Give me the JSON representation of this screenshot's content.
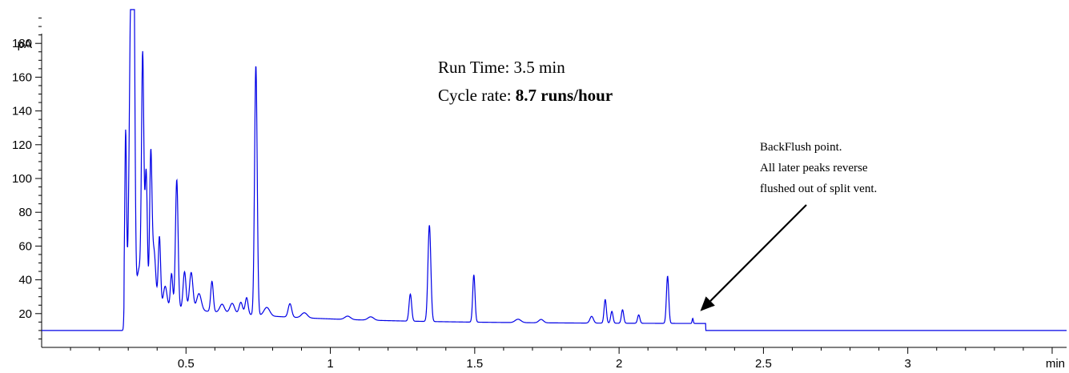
{
  "chart_data": {
    "type": "line",
    "title": "",
    "xlabel": "",
    "ylabel": "",
    "x_unit": "min",
    "y_unit": "pA",
    "xlim": [
      0,
      3.55
    ],
    "ylim": [
      0,
      200
    ],
    "x_ticks": [
      {
        "value": 0.5,
        "label": "0.5"
      },
      {
        "value": 1,
        "label": "1"
      },
      {
        "value": 1.5,
        "label": "1.5"
      },
      {
        "value": 2,
        "label": "2"
      },
      {
        "value": 2.5,
        "label": "2.5"
      },
      {
        "value": 3,
        "label": "3"
      }
    ],
    "x_minor_step": 0.1,
    "y_ticks": [
      {
        "value": 20,
        "label": "20"
      },
      {
        "value": 40,
        "label": "40"
      },
      {
        "value": 60,
        "label": "60"
      },
      {
        "value": 80,
        "label": "80"
      },
      {
        "value": 100,
        "label": "100"
      },
      {
        "value": 120,
        "label": "120"
      },
      {
        "value": 140,
        "label": "140"
      },
      {
        "value": 160,
        "label": "160"
      },
      {
        "value": 180,
        "label": "180"
      }
    ],
    "y_minor_step": 5,
    "baseline": 10,
    "series": [
      {
        "color": "#0000e6",
        "peaks": [
          {
            "rt": 0.291,
            "height": 110,
            "width": 0.003
          },
          {
            "rt": 0.31,
            "height": 200,
            "width": 0.006
          },
          {
            "rt": 0.319,
            "height": 182,
            "width": 0.004
          },
          {
            "rt": 0.338,
            "height": 30,
            "width": 0.008
          },
          {
            "rt": 0.35,
            "height": 152,
            "width": 0.004
          },
          {
            "rt": 0.362,
            "height": 88,
            "width": 0.004
          },
          {
            "rt": 0.378,
            "height": 96,
            "width": 0.004
          },
          {
            "rt": 0.389,
            "height": 42,
            "width": 0.006
          },
          {
            "rt": 0.408,
            "height": 51,
            "width": 0.004
          },
          {
            "rt": 0.428,
            "height": 22,
            "width": 0.006
          },
          {
            "rt": 0.45,
            "height": 30,
            "width": 0.004
          },
          {
            "rt": 0.468,
            "height": 86,
            "width": 0.0045
          },
          {
            "rt": 0.495,
            "height": 32,
            "width": 0.005
          },
          {
            "rt": 0.518,
            "height": 32,
            "width": 0.006
          },
          {
            "rt": 0.545,
            "height": 20,
            "width": 0.008
          },
          {
            "rt": 0.59,
            "height": 28,
            "width": 0.0045
          },
          {
            "rt": 0.625,
            "height": 15,
            "width": 0.008
          },
          {
            "rt": 0.66,
            "height": 16,
            "width": 0.008
          },
          {
            "rt": 0.69,
            "height": 17,
            "width": 0.006
          },
          {
            "rt": 0.71,
            "height": 20,
            "width": 0.005
          },
          {
            "rt": 0.742,
            "height": 158,
            "width": 0.0045
          },
          {
            "rt": 0.78,
            "height": 15,
            "width": 0.01
          },
          {
            "rt": 0.86,
            "height": 18,
            "width": 0.006
          },
          {
            "rt": 0.91,
            "height": 13,
            "width": 0.01
          },
          {
            "rt": 1.06,
            "height": 12,
            "width": 0.01
          },
          {
            "rt": 1.14,
            "height": 12,
            "width": 0.01
          },
          {
            "rt": 1.277,
            "height": 26,
            "width": 0.0045
          },
          {
            "rt": 1.343,
            "height": 67,
            "width": 0.005
          },
          {
            "rt": 1.497,
            "height": 38,
            "width": 0.004
          },
          {
            "rt": 1.65,
            "height": 12,
            "width": 0.01
          },
          {
            "rt": 1.73,
            "height": 12,
            "width": 0.008
          },
          {
            "rt": 1.905,
            "height": 14,
            "width": 0.006
          },
          {
            "rt": 1.952,
            "height": 24,
            "width": 0.004
          },
          {
            "rt": 1.975,
            "height": 17,
            "width": 0.004
          },
          {
            "rt": 2.012,
            "height": 18,
            "width": 0.004
          },
          {
            "rt": 2.068,
            "height": 15,
            "width": 0.004
          },
          {
            "rt": 2.168,
            "height": 38,
            "width": 0.004
          },
          {
            "rt": 2.255,
            "height": 13,
            "width": 0.002
          }
        ]
      }
    ],
    "annotations": {
      "run_time_prefix": "Run Time: ",
      "run_time_value": "3.5 min",
      "cycle_prefix": "Cycle rate: ",
      "cycle_value": "8.7 runs/hour",
      "backflush_lines": [
        "BackFlush point.",
        "All later peaks reverse",
        "flushed out of split vent."
      ],
      "arrow_target": {
        "x": 2.27,
        "y": 11
      }
    }
  }
}
